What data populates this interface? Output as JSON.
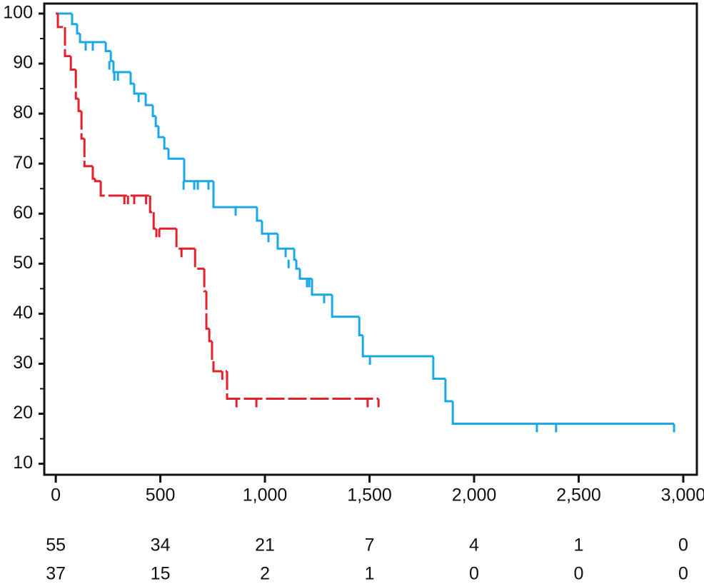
{
  "chart_data": {
    "type": "kaplan-meier",
    "xlim": [
      -55,
      3065
    ],
    "ylim": [
      7.8,
      102
    ],
    "xticks": [
      0,
      500,
      {
        "value": 1000,
        "label": "1,000"
      },
      {
        "value": 1500,
        "label": "1,500"
      },
      {
        "value": 2000,
        "label": "2,000"
      },
      {
        "value": 2500,
        "label": "2,500"
      },
      {
        "value": 3000,
        "label": "3,000"
      }
    ],
    "yticks": [
      10,
      20,
      30,
      40,
      50,
      60,
      70,
      80,
      90,
      100
    ],
    "yminorticks": [
      15,
      25,
      35,
      45,
      55,
      65,
      75,
      85,
      95
    ],
    "series": [
      {
        "color": "#1aa9e6",
        "dashed": false,
        "x": [
          0,
          78,
          102,
          116,
          239,
          263,
          276,
          358,
          375,
          430,
          464,
          478,
          491,
          519,
          539,
          614,
          754,
          962,
          986,
          1061,
          1140,
          1150,
          1167,
          1225,
          1321,
          1451,
          1468,
          1805,
          1863,
          1898,
          2956
        ],
        "values": [
          100,
          97.9,
          96,
          94.3,
          92.5,
          90.5,
          88.3,
          86,
          84,
          81.7,
          79.5,
          77.5,
          75.3,
          73,
          71,
          66.5,
          61.3,
          58.6,
          56,
          53,
          50.8,
          49,
          47,
          43.8,
          39.4,
          35.7,
          31.5,
          27,
          22.5,
          18,
          18
        ],
        "censor_x": [
          143,
          177,
          256,
          280,
          297,
          396,
          611,
          662,
          679,
          730,
          860,
          1017,
          1099,
          1113,
          1201,
          1212,
          1283,
          1502,
          2300,
          2392,
          2956
        ],
        "censor_y": [
          94.3,
          94.3,
          90.5,
          88.3,
          88.3,
          84,
          66.5,
          66.5,
          66.5,
          66.5,
          61.3,
          56,
          53,
          50.8,
          47,
          47,
          43.8,
          31.5,
          18,
          18,
          18
        ]
      },
      {
        "color": "#e3212c",
        "dashed": true,
        "x": [
          0,
          10,
          44,
          72,
          96,
          109,
          123,
          137,
          177,
          188,
          215,
          451,
          468,
          577,
          666,
          710,
          720,
          734,
          747,
          754,
          819,
          1543
        ],
        "values": [
          100,
          97.3,
          91.5,
          88.8,
          83,
          80.5,
          75,
          69.5,
          67,
          66.5,
          63.6,
          60.3,
          57,
          53,
          49,
          44.5,
          37,
          34.5,
          30.5,
          28.5,
          23,
          23
        ],
        "censor_x": [
          328,
          345,
          375,
          432,
          481,
          495,
          601,
          796,
          864,
          959,
          1491,
          1543
        ],
        "censor_y": [
          63.6,
          63.6,
          63.6,
          63.6,
          57,
          57,
          53,
          28.5,
          23,
          23,
          23,
          23
        ]
      }
    ],
    "risk_table": {
      "rows": [
        [
          55,
          34,
          21,
          7,
          4,
          1,
          0
        ],
        [
          37,
          15,
          2,
          1,
          0,
          0,
          0
        ]
      ]
    }
  }
}
